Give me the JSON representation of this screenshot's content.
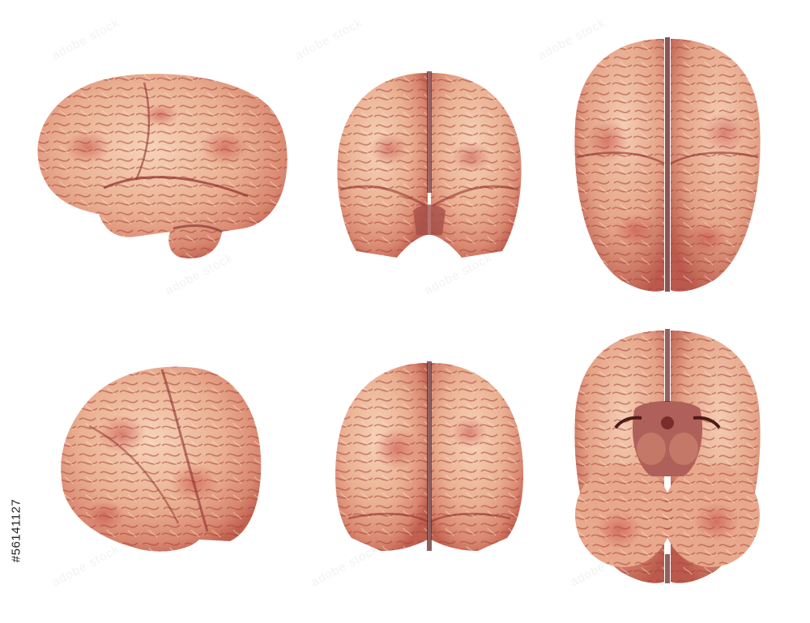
{
  "image": {
    "description_views": [
      {
        "id": "left-lateral",
        "view": "lateral"
      },
      {
        "id": "anterior",
        "view": "anterior"
      },
      {
        "id": "superior",
        "view": "superior"
      },
      {
        "id": "oblique",
        "view": "oblique"
      },
      {
        "id": "posterior",
        "view": "posterior"
      },
      {
        "id": "inferior",
        "view": "inferior"
      }
    ],
    "colors": {
      "background": "#ffffff",
      "tissue_light": "#f2c7a8",
      "tissue_mid": "#e6a585",
      "tissue_dark": "#c0594d",
      "sulcus": "#9e3a38"
    }
  },
  "watermark": {
    "text": "adobe stock"
  },
  "stock_id": {
    "text": "#56141127"
  }
}
